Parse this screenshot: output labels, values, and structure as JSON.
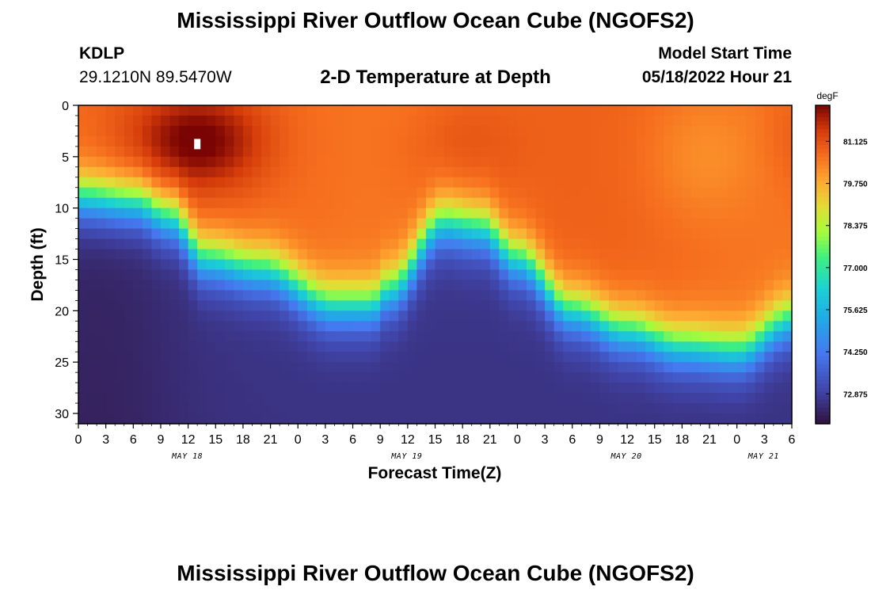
{
  "header": {
    "title": "Mississippi River Outflow Ocean Cube (NGOFS2)",
    "station_id": "KDLP",
    "station_coords": "29.1210N  89.5470W",
    "subtitle": "2-D Temperature at Depth",
    "model_start_label": "Model Start Time",
    "model_start_value": "05/18/2022 Hour 21"
  },
  "footer": {
    "title": "Mississippi River Outflow Ocean Cube (NGOFS2)"
  },
  "chart_data": {
    "type": "heatmap",
    "title": "2-D Temperature at Depth",
    "xlabel": "Forecast Time(Z)",
    "ylabel": "Depth (ft)",
    "x_range_hours": [
      0,
      78
    ],
    "x_ticks": [
      {
        "h": 0,
        "label": "0"
      },
      {
        "h": 3,
        "label": "3"
      },
      {
        "h": 6,
        "label": "6"
      },
      {
        "h": 9,
        "label": "9"
      },
      {
        "h": 12,
        "label": "12"
      },
      {
        "h": 15,
        "label": "15"
      },
      {
        "h": 18,
        "label": "18"
      },
      {
        "h": 21,
        "label": "21"
      },
      {
        "h": 24,
        "label": "0"
      },
      {
        "h": 27,
        "label": "3"
      },
      {
        "h": 30,
        "label": "6"
      },
      {
        "h": 33,
        "label": "9"
      },
      {
        "h": 36,
        "label": "12"
      },
      {
        "h": 39,
        "label": "15"
      },
      {
        "h": 42,
        "label": "18"
      },
      {
        "h": 45,
        "label": "21"
      },
      {
        "h": 48,
        "label": "0"
      },
      {
        "h": 51,
        "label": "3"
      },
      {
        "h": 54,
        "label": "6"
      },
      {
        "h": 57,
        "label": "9"
      },
      {
        "h": 60,
        "label": "12"
      },
      {
        "h": 63,
        "label": "15"
      },
      {
        "h": 66,
        "label": "18"
      },
      {
        "h": 69,
        "label": "21"
      },
      {
        "h": 72,
        "label": "0"
      },
      {
        "h": 75,
        "label": "3"
      },
      {
        "h": 78,
        "label": "6"
      }
    ],
    "date_labels": [
      {
        "h": 12,
        "label": "MAY 18"
      },
      {
        "h": 36,
        "label": "MAY 19"
      },
      {
        "h": 60,
        "label": "MAY 20"
      },
      {
        "h": 75,
        "label": "MAY 21"
      }
    ],
    "y_range_ft": [
      0,
      31
    ],
    "y_ticks": [
      0,
      5,
      10,
      15,
      20,
      25,
      30
    ],
    "y_tick_labels": [
      "0",
      "5",
      "10",
      "15",
      "20",
      "25",
      "30"
    ],
    "colorbar": {
      "unit": "degF",
      "min": 71.9,
      "max": 82.3,
      "ticks": [
        72.875,
        75.625,
        77.0,
        78.375,
        79.75,
        81.125
      ],
      "tick_labels": [
        "72.875",
        "75.625",
        "77.000",
        "78.375",
        "79.750",
        "81.125"
      ],
      "extra_ticks": [
        74.25
      ],
      "extra_tick_labels": [
        "74.250"
      ]
    },
    "thermocline_depth_ft": {
      "hours": [
        0,
        6,
        10,
        14,
        20,
        28,
        32,
        34,
        40,
        44,
        48,
        54,
        60,
        66,
        72,
        78
      ],
      "values": [
        9,
        9.5,
        11,
        15,
        16,
        19.5,
        19.5,
        18,
        11.5,
        12,
        15,
        20,
        22,
        23.5,
        24,
        21
      ]
    },
    "surface_warm_core": {
      "hour": 13,
      "depth_ft": 3.5,
      "temp_degF": 82.3
    },
    "surface_temp_degF": 80.7,
    "bottom_temp_degF": 72.6,
    "grid_cells": {
      "nx": 78,
      "ny": 31
    }
  }
}
